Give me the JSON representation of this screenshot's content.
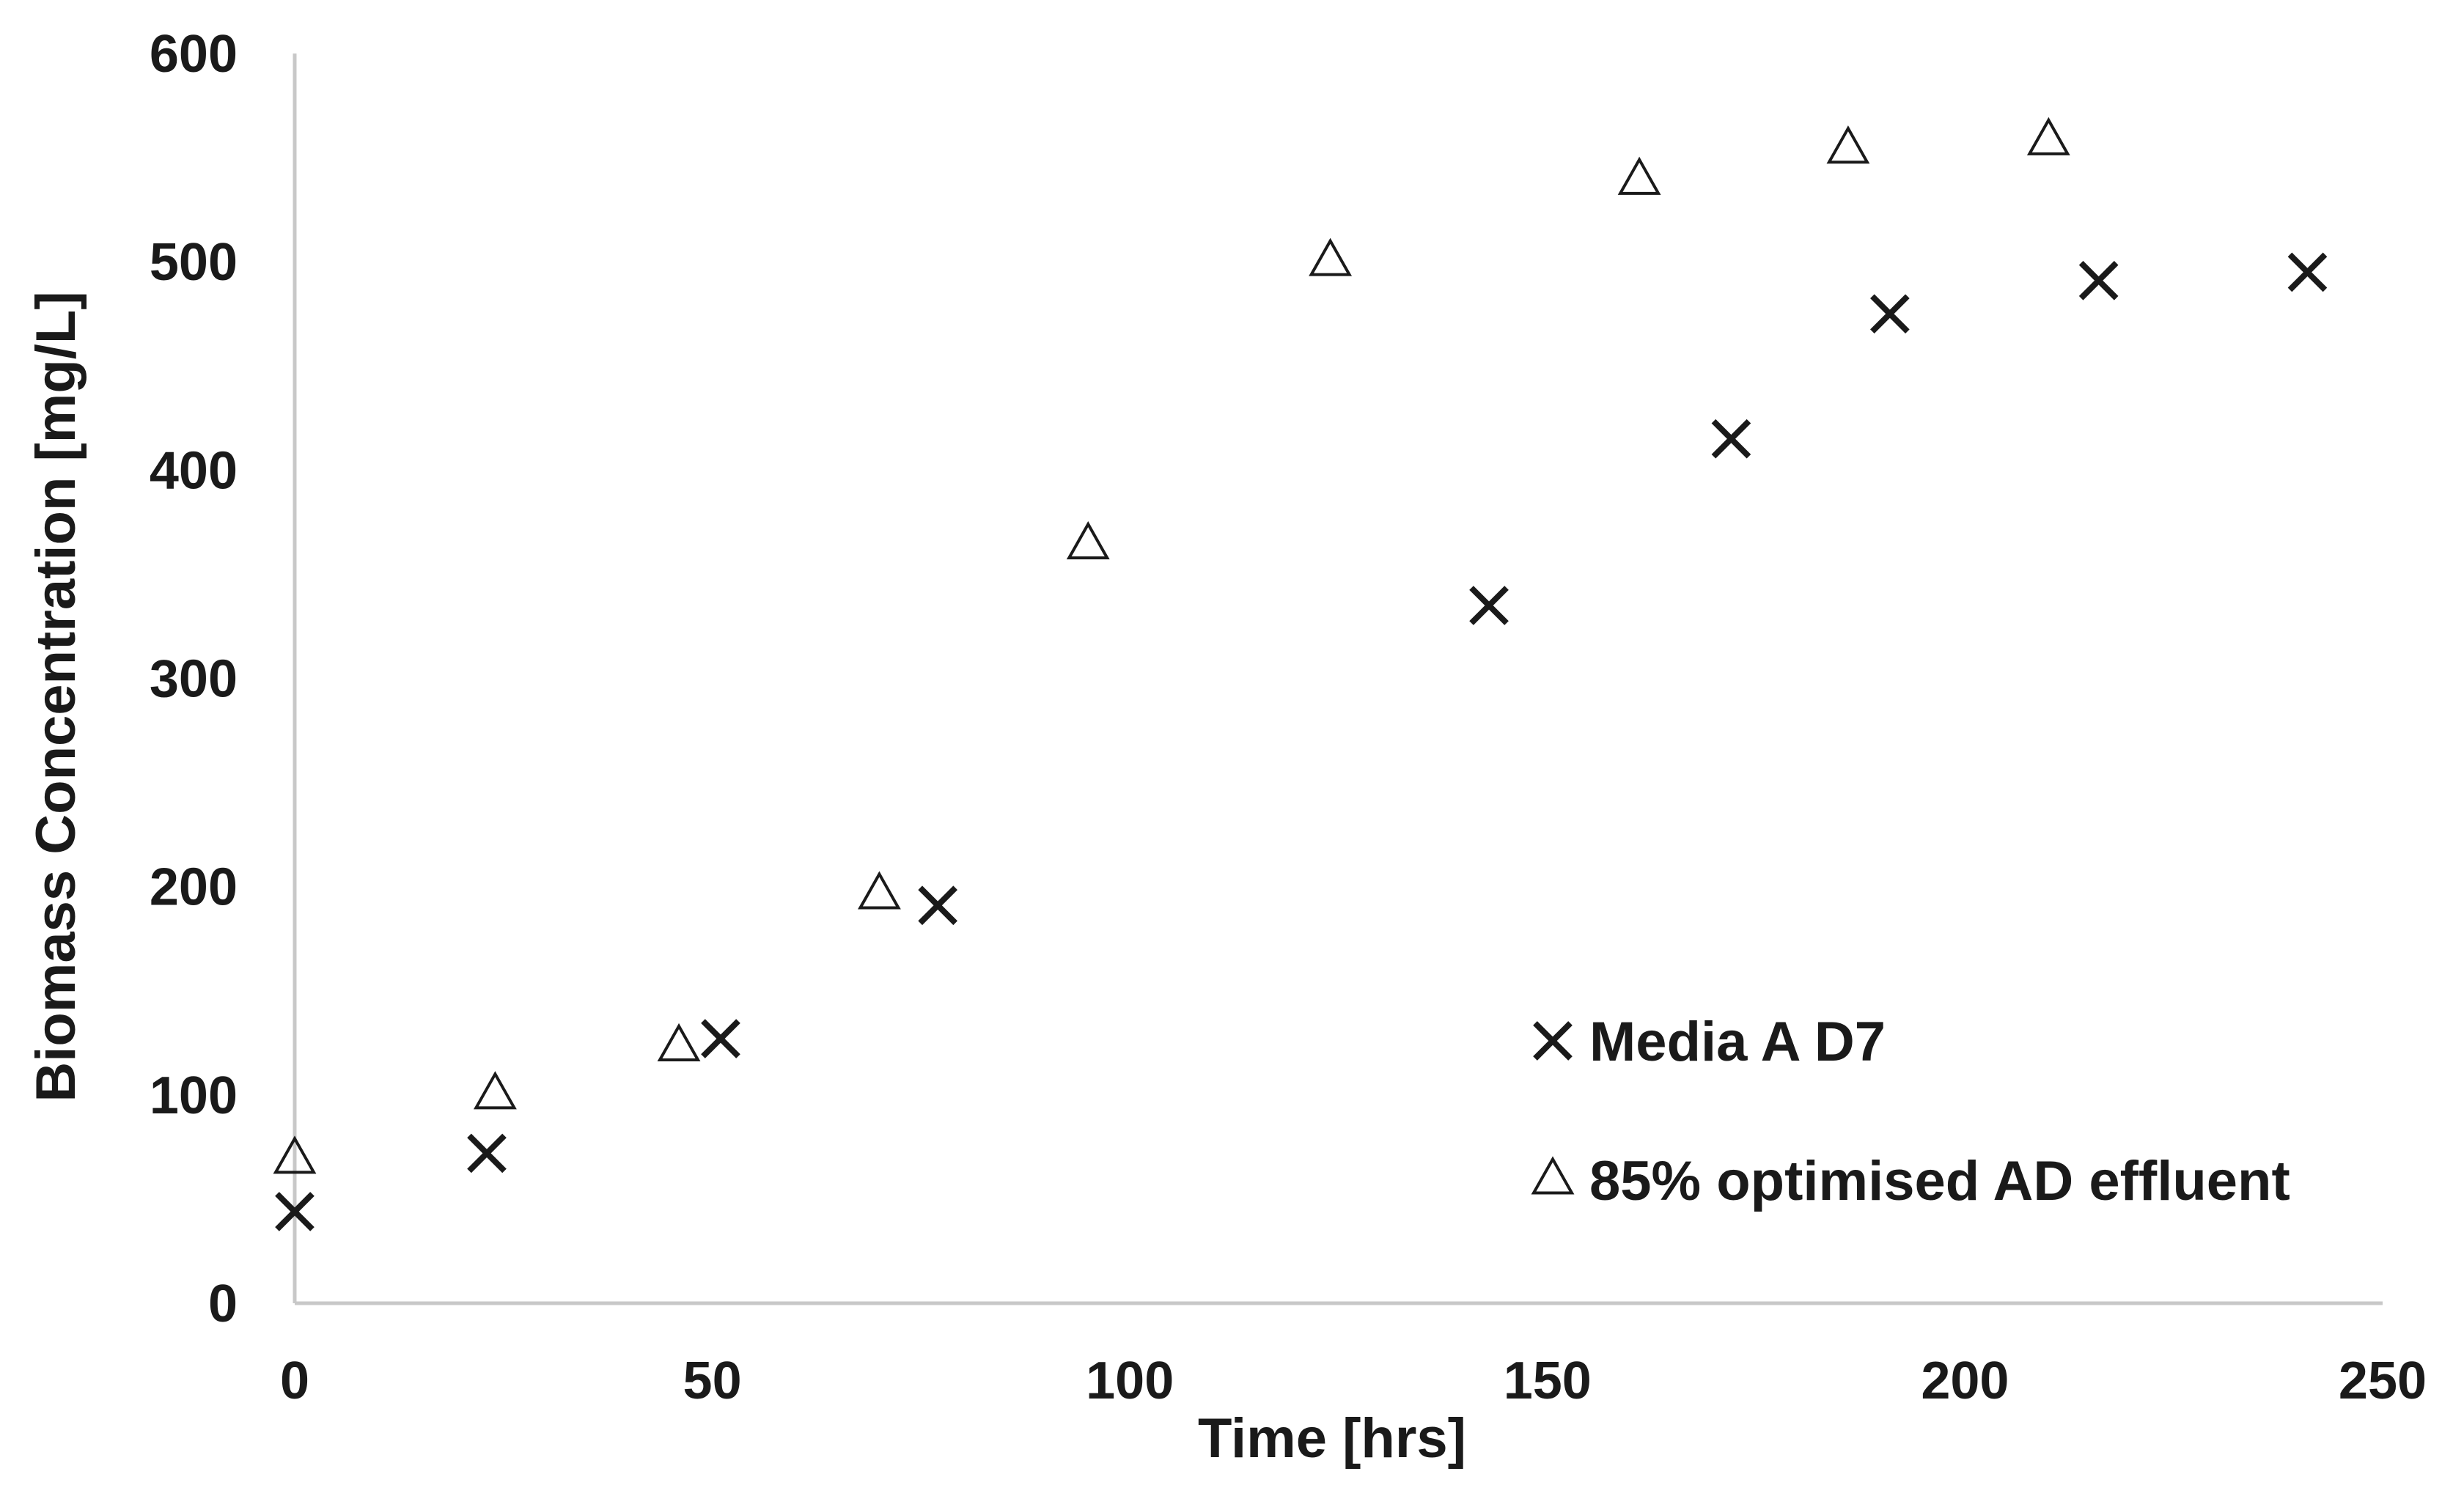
{
  "chart_data": {
    "type": "scatter",
    "xlabel": "Time [hrs]",
    "ylabel": "Biomass Concentration [mg/L]",
    "xlim": [
      0,
      250
    ],
    "ylim": [
      0,
      600
    ],
    "xticks": [
      "0",
      "50",
      "100",
      "150",
      "200",
      "250"
    ],
    "yticks": [
      "0",
      "100",
      "200",
      "300",
      "400",
      "500",
      "600"
    ],
    "grid": false,
    "legend_position": "bottom-right",
    "series": [
      {
        "name": "Media A D7",
        "marker": "x",
        "color": "#1a1a1a",
        "points": [
          {
            "x": 0,
            "y": 44
          },
          {
            "x": 23,
            "y": 72
          },
          {
            "x": 51,
            "y": 127
          },
          {
            "x": 77,
            "y": 191
          },
          {
            "x": 143,
            "y": 335
          },
          {
            "x": 172,
            "y": 415
          },
          {
            "x": 191,
            "y": 475
          },
          {
            "x": 216,
            "y": 491
          },
          {
            "x": 241,
            "y": 495
          }
        ]
      },
      {
        "name": "85% optimised AD effluent",
        "marker": "triangle",
        "color": "#1a1a1a",
        "points": [
          {
            "x": 0,
            "y": 69
          },
          {
            "x": 24,
            "y": 100
          },
          {
            "x": 46,
            "y": 123
          },
          {
            "x": 70,
            "y": 196
          },
          {
            "x": 95,
            "y": 364
          },
          {
            "x": 124,
            "y": 500
          },
          {
            "x": 161,
            "y": 539
          },
          {
            "x": 186,
            "y": 554
          },
          {
            "x": 210,
            "y": 558
          }
        ]
      }
    ]
  }
}
